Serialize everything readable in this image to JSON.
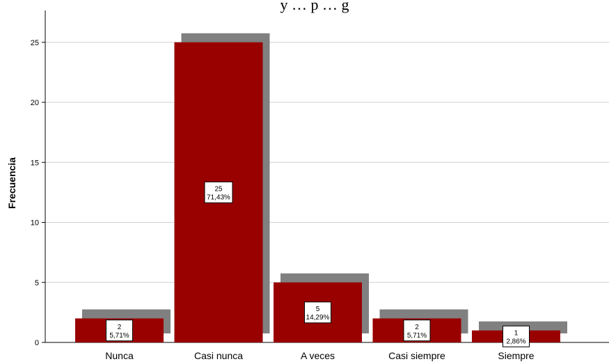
{
  "chart_data": {
    "type": "bar",
    "title": "y … p … g",
    "xlabel": "",
    "ylabel": "Frecuencia",
    "ylim": [
      0,
      27
    ],
    "yticks": [
      0,
      5,
      10,
      15,
      20,
      25
    ],
    "grid": true,
    "categories": [
      "Nunca",
      "Casi nunca",
      "A veces",
      "Casi siempre",
      "Siempre"
    ],
    "values": [
      2,
      25,
      5,
      2,
      1
    ],
    "percent_labels": [
      "5,71%",
      "71,43%",
      "14,29%",
      "5,71%",
      "2,86%"
    ],
    "colors": {
      "bar": "#990000",
      "shadow": "#808080",
      "grid": "#d0d0d0",
      "axis": "#000000"
    }
  }
}
